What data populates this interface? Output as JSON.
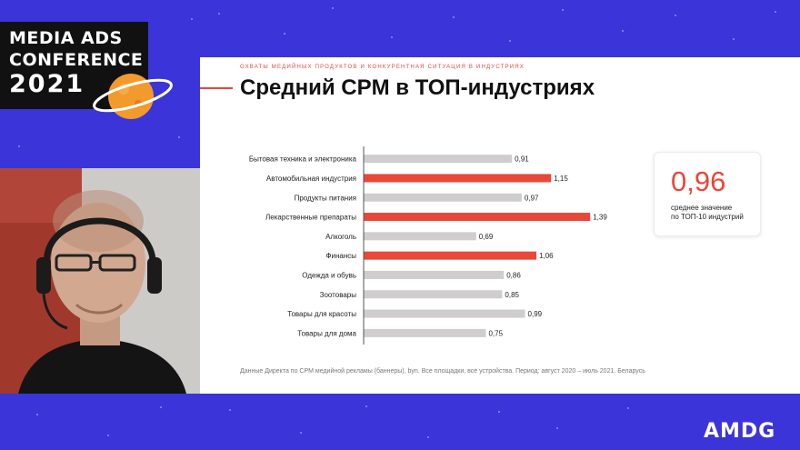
{
  "conference": {
    "line1": "MEDIA ADS",
    "line2": "CONFERENCE",
    "line3": "2021"
  },
  "slide": {
    "kicker": "охваты медийных продуктов и конкурентная ситуация в индустриях",
    "title": "Средний CPM в ТОП-индустриях",
    "footnote": "Данные Директа по CPM медийной рекламы (баннеры), byn. Все площадки, все устройства. Период:  август 2020 – июль 2021. Беларусь"
  },
  "kpi": {
    "value": "0,96",
    "caption_line1": "среднее значение",
    "caption_line2": "по ТОП-10 индустрий"
  },
  "brand": "AMDG",
  "colors": {
    "background": "#3b34d9",
    "accent": "#e8473a",
    "bar_default": "#cfcdcd"
  },
  "chart_data": {
    "type": "bar",
    "orientation": "horizontal",
    "categories": [
      "Бытовая техника и электроника",
      "Автомобильная индустрия",
      "Продукты питания",
      "Лекарственные препараты",
      "Алкоголь",
      "Финансы",
      "Одежда и обувь",
      "Зоотовары",
      "Товары для красоты",
      "Товары для дома"
    ],
    "values": [
      0.91,
      1.15,
      0.97,
      1.39,
      0.69,
      1.06,
      0.86,
      0.85,
      0.99,
      0.75
    ],
    "value_labels": [
      "0,91",
      "1,15",
      "0,97",
      "1,39",
      "0,69",
      "1,06",
      "0,86",
      "0,85",
      "0,99",
      "0,75"
    ],
    "highlighted": [
      false,
      true,
      false,
      true,
      false,
      true,
      false,
      false,
      false,
      false
    ],
    "xlim": [
      0,
      1.45
    ],
    "title": "",
    "xlabel": "",
    "ylabel": "",
    "grid": false
  }
}
